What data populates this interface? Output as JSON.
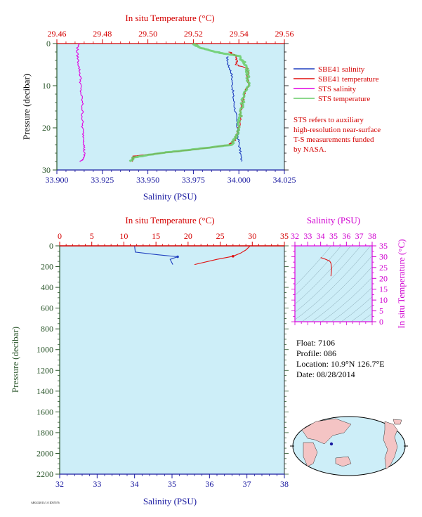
{
  "top_chart": {
    "top_axis_title": "In situ Temperature (°C)",
    "top_ticks": [
      "29.46",
      "29.48",
      "29.50",
      "29.52",
      "29.54",
      "29.56"
    ],
    "bottom_axis_title": "Salinity (PSU)",
    "bottom_ticks": [
      "33.900",
      "33.925",
      "33.950",
      "33.975",
      "34.000",
      "34.025"
    ],
    "y_axis_title": "Pressure (decibar)",
    "y_ticks": [
      "0",
      "10",
      "20",
      "30"
    ],
    "legend": [
      {
        "label": "SBE41 salinity",
        "color": "#1f3fbf"
      },
      {
        "label": "SBE41 temperature",
        "color": "#e01010"
      },
      {
        "label": "STS salinity",
        "color": "#e000e0"
      },
      {
        "label": "STS temperature",
        "color": "#66cc66"
      }
    ],
    "note_lines": [
      "STS refers to auxiliary",
      "high-resolution near-surface",
      "T-S measurements funded",
      "by NASA."
    ]
  },
  "bottom_chart": {
    "top_axis_title": "In situ Temperature (°C)",
    "top_ticks": [
      "0",
      "5",
      "10",
      "15",
      "20",
      "25",
      "30",
      "35"
    ],
    "bottom_axis_title": "Salinity (PSU)",
    "bottom_ticks": [
      "32",
      "33",
      "34",
      "35",
      "36",
      "37",
      "38"
    ],
    "y_axis_title": "Pressure (decibar)",
    "y_ticks": [
      "0",
      "200",
      "400",
      "600",
      "800",
      "1000",
      "1200",
      "1400",
      "1600",
      "1800",
      "2000",
      "2200"
    ]
  },
  "ts_chart": {
    "top_axis_title": "Salinity (PSU)",
    "top_ticks": [
      "32",
      "33",
      "34",
      "35",
      "36",
      "37",
      "38"
    ],
    "right_axis_title": "In situ Temperature (°C)",
    "right_ticks": [
      "0",
      "5",
      "10",
      "15",
      "20",
      "25",
      "30",
      "35"
    ]
  },
  "float_info": {
    "float": "Float:  7106",
    "profile": "Profile:  086",
    "location": "Location:  10.9°N  126.7°E",
    "date": "Date:  08/28/2014"
  },
  "footer": "ARGO2013/1.0 ID55576",
  "chart_data": [
    {
      "type": "line",
      "title": "",
      "xlabel": "Salinity (PSU)",
      "x2label": "In situ Temperature (°C)",
      "ylabel": "Pressure (decibar)",
      "xlim": [
        33.9,
        34.025
      ],
      "x2lim": [
        29.46,
        29.56
      ],
      "ylim": [
        30,
        0
      ],
      "series": [
        {
          "name": "SBE41 salinity",
          "axis": "salinity",
          "color": "#1f3fbf",
          "points": [
            [
              33.9935,
              3
            ],
            [
              33.994,
              5
            ],
            [
              33.996,
              7
            ],
            [
              33.9965,
              10
            ],
            [
              33.997,
              13
            ],
            [
              33.998,
              16
            ],
            [
              33.999,
              19
            ],
            [
              33.9995,
              22
            ],
            [
              34.0005,
              25
            ],
            [
              34.0015,
              28
            ]
          ]
        },
        {
          "name": "SBE41 temperature",
          "axis": "temperature",
          "color": "#e01010",
          "points": [
            [
              29.536,
              2
            ],
            [
              29.539,
              3
            ],
            [
              29.539,
              5
            ],
            [
              29.544,
              6
            ],
            [
              29.544,
              10
            ],
            [
              29.542,
              13
            ],
            [
              29.541,
              16
            ],
            [
              29.54,
              20
            ],
            [
              29.538,
              23
            ],
            [
              29.536,
              24
            ],
            [
              29.523,
              25
            ],
            [
              29.506,
              26
            ],
            [
              29.494,
              26.7
            ],
            [
              29.493,
              28
            ]
          ]
        },
        {
          "name": "STS salinity",
          "axis": "salinity",
          "color": "#e000e0",
          "points": [
            [
              33.912,
              0
            ],
            [
              33.911,
              2
            ],
            [
              33.912,
              5
            ],
            [
              33.913,
              8
            ],
            [
              33.913,
              11
            ],
            [
              33.914,
              14
            ],
            [
              33.914,
              17
            ],
            [
              33.914,
              20
            ],
            [
              33.915,
              23
            ],
            [
              33.915,
              25
            ],
            [
              33.915,
              27
            ],
            [
              33.913,
              28
            ]
          ]
        },
        {
          "name": "STS temperature",
          "axis": "temperature",
          "color": "#66cc66",
          "points": [
            [
              29.52,
              0
            ],
            [
              29.523,
              1
            ],
            [
              29.53,
              2
            ],
            [
              29.54,
              3
            ],
            [
              29.543,
              5
            ],
            [
              29.544,
              7
            ],
            [
              29.544,
              10
            ],
            [
              29.542,
              13
            ],
            [
              29.541,
              16
            ],
            [
              29.54,
              19
            ],
            [
              29.539,
              22
            ],
            [
              29.537,
              24
            ],
            [
              29.522,
              25
            ],
            [
              29.505,
              26
            ],
            [
              29.494,
              27
            ],
            [
              29.492,
              28
            ]
          ]
        }
      ]
    },
    {
      "type": "line",
      "title": "",
      "xlabel": "Salinity (PSU)",
      "x2label": "In situ Temperature (°C)",
      "ylabel": "Pressure (decibar)",
      "xlim": [
        32,
        38
      ],
      "x2lim": [
        0,
        35
      ],
      "ylim": [
        2200,
        0
      ],
      "series": [
        {
          "name": "salinity",
          "axis": "salinity",
          "color": "#1f3fbf",
          "points": [
            [
              34.0,
              5
            ],
            [
              34.02,
              60
            ],
            [
              34.6,
              85
            ],
            [
              35.15,
              105
            ],
            [
              34.95,
              130
            ],
            [
              34.98,
              150
            ],
            [
              35.02,
              180
            ]
          ]
        },
        {
          "name": "temperature",
          "axis": "temperature",
          "color": "#e01010",
          "points": [
            [
              29.6,
              5
            ],
            [
              29.0,
              40
            ],
            [
              28.2,
              70
            ],
            [
              27.0,
              100
            ],
            [
              24.5,
              130
            ],
            [
              21.0,
              180
            ]
          ]
        }
      ]
    },
    {
      "type": "line",
      "title": "",
      "xlabel": "Salinity (PSU)",
      "ylabel": "In situ Temperature (°C)",
      "xlim": [
        32,
        38
      ],
      "ylim": [
        0,
        35
      ],
      "series": [
        {
          "name": "T-S",
          "color": "#e01010",
          "points": [
            [
              34.0,
              29.6
            ],
            [
              34.3,
              29.0
            ],
            [
              34.7,
              28.0
            ],
            [
              34.8,
              27.0
            ],
            [
              34.85,
              24.5
            ],
            [
              34.8,
              21.0
            ]
          ]
        }
      ]
    }
  ]
}
